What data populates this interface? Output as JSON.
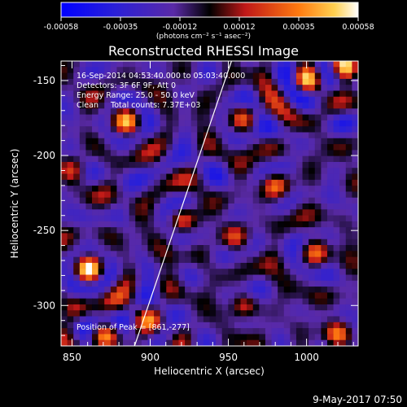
{
  "chart_data": {
    "type": "heatmap",
    "title": "Reconstructed RHESSI Image",
    "xlabel": "Heliocentric X (arcsec)",
    "ylabel": "Heliocentric Y (arcsec)",
    "xlim": [
      843,
      1033
    ],
    "ylim": [
      -327,
      -137
    ],
    "x_ticks": [
      850,
      900,
      950,
      1000
    ],
    "y_ticks": [
      -150,
      -200,
      -250,
      -300
    ],
    "colorbar": {
      "range": [
        -0.00058,
        0.00058
      ],
      "ticks": [
        "-0.00058",
        "-0.00035",
        "-0.00012",
        "0.00012",
        "0.00035",
        "0.00058"
      ],
      "unit_label": "(photons cm⁻² s⁻¹ asec⁻²)"
    },
    "annotations": {
      "time": "16-Sep-2014 04:53:40.000 to 05:03:40.000",
      "detectors": "Detectors: 3F 6F 9F, Att 0",
      "energy": "Energy Range: 25.0 - 50.0 keV",
      "clean": "Clean     Total counts: 7.37E+03",
      "peak": "Position of Peak = [861,-277]"
    },
    "limb_line": {
      "x": [
        890,
        952
      ],
      "y": [
        -327,
        -137
      ]
    },
    "peak_position": [
      861,
      -277
    ],
    "bright_spots": [
      {
        "x": 861,
        "y": -277,
        "value": 0.00058
      },
      {
        "x": 1025,
        "y": -140,
        "value": 0.0005
      },
      {
        "x": 1000,
        "y": -150,
        "value": 0.00042
      },
      {
        "x": 885,
        "y": -177,
        "value": 0.0004
      },
      {
        "x": 920,
        "y": -243,
        "value": 0.00036
      },
      {
        "x": 980,
        "y": -220,
        "value": 0.00034
      },
      {
        "x": 870,
        "y": -320,
        "value": 0.00045
      },
      {
        "x": 1020,
        "y": -320,
        "value": 0.0004
      },
      {
        "x": 1005,
        "y": -265,
        "value": 0.00032
      },
      {
        "x": 960,
        "y": -300,
        "value": 0.0003
      },
      {
        "x": 900,
        "y": -310,
        "value": 0.00028
      },
      {
        "x": 960,
        "y": -175,
        "value": 0.00024
      },
      {
        "x": 955,
        "y": -255,
        "value": 0.00026
      },
      {
        "x": 850,
        "y": -210,
        "value": 0.0002
      }
    ],
    "colors": {
      "low": "#0000ff",
      "mid_low": "#5a2aa6",
      "mid": "#000000",
      "mid_high": "#d22010",
      "high": "#ffa010",
      "max": "#ffffff"
    }
  },
  "footer": {
    "timestamp": "9-May-2017 07:50"
  }
}
